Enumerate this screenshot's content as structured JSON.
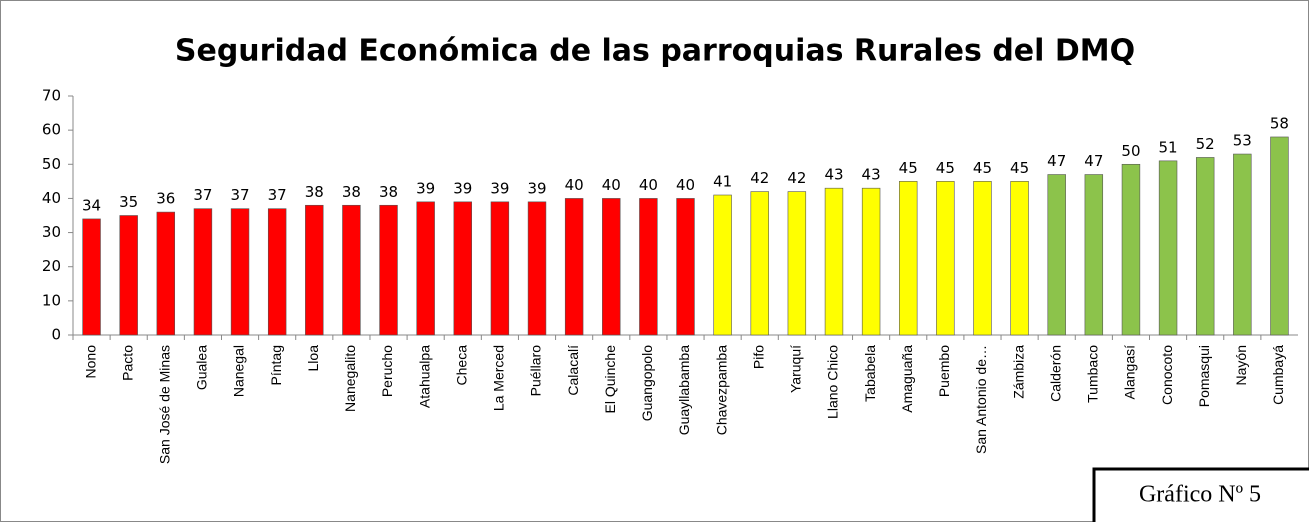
{
  "chart_data": {
    "type": "bar",
    "title": "Seguridad Económica de las parroquias Rurales del DMQ",
    "categories": [
      "Nono",
      "Pacto",
      "San José de Minas",
      "Gualea",
      "Nanegal",
      "Píntag",
      "Lloa",
      "Nanegalito",
      "Perucho",
      "Atahualpa",
      "Checa",
      "La Merced",
      "Puéllaro",
      "Calacalí",
      "El Quinche",
      "Guangopolo",
      "Guayllabamba",
      "Chavezpamba",
      "Pifo",
      "Yaruquí",
      "Llano Chico",
      "Tababela",
      "Amaguaña",
      "Puembo",
      "San Antonio de…",
      "Zámbiza",
      "Calderón",
      "Tumbaco",
      "Alangasí",
      "Conocoto",
      "Pomasqui",
      "Nayón",
      "Cumbayá"
    ],
    "values": [
      34,
      35,
      36,
      37,
      37,
      37,
      38,
      38,
      38,
      39,
      39,
      39,
      39,
      40,
      40,
      40,
      40,
      41,
      42,
      42,
      43,
      43,
      45,
      45,
      45,
      45,
      47,
      47,
      50,
      51,
      52,
      53,
      58
    ],
    "colors": [
      "#ff0000",
      "#ff0000",
      "#ff0000",
      "#ff0000",
      "#ff0000",
      "#ff0000",
      "#ff0000",
      "#ff0000",
      "#ff0000",
      "#ff0000",
      "#ff0000",
      "#ff0000",
      "#ff0000",
      "#ff0000",
      "#ff0000",
      "#ff0000",
      "#ff0000",
      "#ffff00",
      "#ffff00",
      "#ffff00",
      "#ffff00",
      "#ffff00",
      "#ffff00",
      "#ffff00",
      "#ffff00",
      "#ffff00",
      "#8cc34b",
      "#8cc34b",
      "#8cc34b",
      "#8cc34b",
      "#8cc34b",
      "#8cc34b",
      "#8cc34b"
    ],
    "ylim": [
      0,
      70
    ],
    "yticks": [
      0,
      10,
      20,
      30,
      40,
      50,
      60,
      70
    ],
    "grid": false,
    "annotation": "Gráfico Nº 5"
  }
}
